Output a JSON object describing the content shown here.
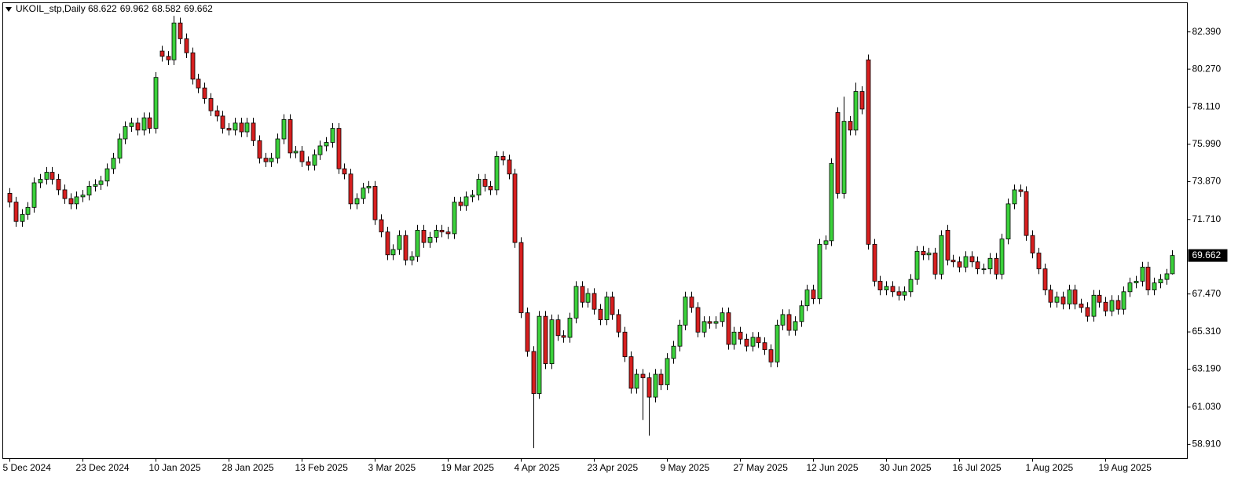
{
  "chart_data": {
    "type": "candlestick",
    "symbol": "UKOIL_stp,Daily",
    "ohlc": [
      68.622,
      69.962,
      68.582,
      69.662
    ],
    "last_price": 69.662,
    "up_color": "#3bd13b",
    "down_color": "#d71f1f",
    "ylim": [
      58.1,
      84.05
    ],
    "yticks": [
      {
        "value": 82.39,
        "label": "82.390"
      },
      {
        "value": 80.27,
        "label": "80.270"
      },
      {
        "value": 78.11,
        "label": "78.110"
      },
      {
        "value": 75.99,
        "label": "75.990"
      },
      {
        "value": 73.87,
        "label": "73.870"
      },
      {
        "value": 71.71,
        "label": "71.710"
      },
      {
        "value": 67.47,
        "label": "67.470"
      },
      {
        "value": 65.31,
        "label": "65.310"
      },
      {
        "value": 63.19,
        "label": "63.190"
      },
      {
        "value": 61.03,
        "label": "61.030"
      },
      {
        "value": 58.91,
        "label": "58.910"
      }
    ],
    "categories": [
      "5 Dec 2024",
      null,
      null,
      null,
      null,
      null,
      null,
      null,
      null,
      null,
      null,
      null,
      "23 Dec 2024",
      null,
      null,
      null,
      null,
      null,
      null,
      null,
      null,
      null,
      null,
      null,
      "10 Jan 2025",
      null,
      null,
      null,
      null,
      null,
      null,
      null,
      null,
      null,
      null,
      null,
      "28 Jan 2025",
      null,
      null,
      null,
      null,
      null,
      null,
      null,
      null,
      null,
      null,
      null,
      "13 Feb 2025",
      null,
      null,
      null,
      null,
      null,
      null,
      null,
      null,
      null,
      null,
      null,
      "3 Mar 2025",
      null,
      null,
      null,
      null,
      null,
      null,
      null,
      null,
      null,
      null,
      null,
      "19 Mar 2025",
      null,
      null,
      null,
      null,
      null,
      null,
      null,
      null,
      null,
      null,
      null,
      "4 Apr 2025",
      null,
      null,
      null,
      null,
      null,
      null,
      null,
      null,
      null,
      null,
      null,
      "23 Apr 2025",
      null,
      null,
      null,
      null,
      null,
      null,
      null,
      null,
      null,
      null,
      null,
      "9 May 2025",
      null,
      null,
      null,
      null,
      null,
      null,
      null,
      null,
      null,
      null,
      null,
      "27 May 2025",
      null,
      null,
      null,
      null,
      null,
      null,
      null,
      null,
      null,
      null,
      null,
      "12 Jun 2025",
      null,
      null,
      null,
      null,
      null,
      null,
      null,
      null,
      null,
      null,
      null,
      "30 Jun 2025",
      null,
      null,
      null,
      null,
      null,
      null,
      null,
      null,
      null,
      null,
      null,
      "16 Jul 2025",
      null,
      null,
      null,
      null,
      null,
      null,
      null,
      null,
      null,
      null,
      null,
      "1 Aug 2025",
      null,
      null,
      null,
      null,
      null,
      null,
      null,
      null,
      null,
      null,
      null,
      "19 Aug 2025",
      null,
      null,
      null,
      null,
      null,
      null,
      null,
      null,
      null,
      null,
      null
    ],
    "open": [
      73.2,
      72.7,
      71.6,
      72.0,
      72.4,
      73.8,
      74.0,
      74.4,
      74.0,
      73.4,
      72.9,
      72.6,
      73.0,
      73.1,
      73.6,
      73.7,
      73.9,
      74.6,
      75.2,
      76.3,
      77.0,
      77.2,
      76.8,
      77.5,
      76.9,
      81.3,
      81.0,
      80.8,
      82.9,
      82.0,
      81.2,
      79.7,
      79.2,
      78.6,
      77.9,
      77.6,
      76.9,
      76.8,
      77.2,
      76.7,
      77.2,
      76.2,
      75.2,
      75.0,
      75.2,
      76.3,
      77.4,
      75.5,
      75.6,
      75.0,
      74.8,
      75.4,
      75.9,
      76.1,
      76.9,
      74.6,
      74.3,
      72.6,
      72.9,
      73.5,
      73.6,
      71.7,
      71.0,
      69.7,
      70.0,
      70.8,
      69.4,
      69.6,
      71.1,
      70.4,
      70.7,
      71.1,
      71.0,
      70.9,
      72.7,
      72.5,
      73.0,
      73.1,
      74.0,
      73.6,
      73.4,
      75.3,
      75.1,
      74.3,
      70.4,
      66.4,
      64.2,
      61.8,
      66.2,
      63.5,
      66.0,
      65.1,
      65.0,
      66.1,
      67.9,
      67.0,
      67.5,
      66.6,
      66.0,
      67.3,
      66.3,
      65.3,
      63.9,
      62.1,
      62.9,
      62.7,
      61.6,
      62.9,
      62.3,
      63.8,
      64.5,
      65.7,
      67.3,
      66.7,
      65.3,
      65.9,
      65.8,
      65.9,
      66.4,
      64.6,
      65.3,
      64.9,
      64.5,
      65.0,
      64.7,
      64.3,
      63.6,
      65.7,
      66.3,
      65.4,
      65.9,
      66.8,
      67.7,
      67.2,
      70.3,
      70.5,
      77.8,
      73.2,
      77.3,
      76.8,
      79.0,
      80.8,
      70.3,
      68.2,
      67.7,
      67.9,
      67.6,
      67.4,
      67.6,
      68.3,
      69.9,
      69.7,
      69.8,
      68.6,
      71.1,
      69.4,
      69.3,
      69.0,
      69.6,
      69.3,
      68.9,
      68.9,
      69.5,
      68.6,
      70.6,
      72.6,
      73.4,
      73.3,
      70.8,
      69.8,
      68.9,
      67.7,
      67.0,
      67.3,
      66.9,
      67.7,
      66.9,
      66.7,
      66.2,
      67.4,
      67.0,
      66.5,
      67.1,
      66.6,
      67.6,
      68.1,
      68.2,
      69.0,
      67.7,
      68.1,
      68.3,
      68.622
    ],
    "high": [
      73.5,
      73.0,
      72.3,
      72.7,
      74.1,
      74.3,
      74.7,
      74.7,
      74.3,
      73.7,
      73.2,
      73.3,
      73.4,
      73.9,
      74.0,
      74.2,
      74.9,
      75.5,
      76.6,
      77.3,
      77.5,
      77.5,
      77.8,
      77.8,
      80.1,
      81.6,
      81.3,
      83.3,
      83.2,
      82.3,
      81.5,
      80.0,
      79.5,
      78.9,
      78.2,
      77.9,
      77.2,
      77.5,
      77.5,
      77.5,
      77.5,
      76.5,
      75.5,
      75.5,
      76.6,
      77.7,
      77.7,
      75.9,
      75.9,
      75.3,
      75.7,
      76.2,
      76.4,
      77.2,
      77.2,
      74.9,
      74.6,
      73.2,
      73.8,
      73.9,
      73.9,
      72.0,
      71.3,
      70.3,
      71.1,
      71.1,
      69.9,
      71.4,
      71.4,
      71.0,
      71.4,
      71.4,
      71.3,
      73.0,
      73.0,
      73.3,
      73.4,
      74.3,
      74.3,
      73.9,
      75.6,
      75.6,
      75.4,
      74.6,
      70.7,
      66.7,
      64.5,
      66.5,
      66.5,
      66.3,
      66.3,
      65.4,
      66.4,
      68.2,
      68.2,
      67.8,
      67.8,
      66.9,
      67.6,
      67.6,
      66.6,
      65.6,
      64.2,
      63.2,
      63.2,
      63.0,
      63.2,
      63.2,
      64.1,
      64.8,
      66.0,
      67.6,
      67.6,
      67.0,
      66.2,
      66.2,
      66.2,
      66.7,
      66.7,
      65.6,
      65.6,
      65.2,
      65.3,
      65.3,
      65.0,
      64.6,
      66.0,
      66.6,
      66.6,
      66.2,
      67.1,
      68.0,
      68.0,
      70.6,
      70.8,
      75.2,
      78.1,
      78.7,
      77.6,
      79.5,
      79.3,
      81.1,
      70.6,
      68.5,
      68.2,
      68.2,
      67.9,
      67.9,
      68.6,
      70.2,
      70.2,
      70.1,
      70.1,
      71.1,
      71.4,
      69.7,
      69.6,
      69.9,
      69.9,
      69.6,
      69.2,
      69.8,
      69.8,
      70.9,
      72.9,
      73.7,
      73.7,
      73.6,
      71.1,
      70.1,
      69.2,
      68.0,
      67.6,
      67.6,
      68.0,
      68.0,
      67.2,
      67.0,
      67.7,
      67.7,
      67.3,
      67.4,
      67.4,
      67.9,
      68.4,
      68.5,
      69.3,
      69.3,
      68.4,
      68.6,
      68.9,
      69.962
    ],
    "low": [
      72.4,
      71.3,
      71.3,
      71.7,
      72.1,
      73.5,
      73.7,
      73.7,
      73.1,
      72.6,
      72.3,
      72.3,
      72.7,
      72.8,
      73.3,
      73.4,
      73.6,
      74.3,
      74.9,
      76.0,
      76.7,
      76.5,
      76.5,
      76.6,
      76.6,
      80.7,
      80.5,
      80.5,
      81.7,
      80.9,
      79.4,
      78.9,
      78.3,
      77.6,
      77.3,
      76.6,
      76.5,
      76.5,
      76.4,
      76.4,
      75.9,
      74.9,
      74.7,
      74.7,
      74.9,
      76.0,
      75.2,
      75.2,
      74.7,
      74.5,
      74.5,
      75.1,
      75.6,
      75.8,
      74.3,
      74.0,
      72.3,
      72.3,
      72.6,
      73.2,
      71.4,
      70.7,
      69.4,
      69.4,
      69.7,
      69.1,
      69.1,
      69.3,
      70.1,
      70.1,
      70.4,
      70.7,
      70.6,
      70.6,
      72.2,
      72.2,
      72.7,
      72.8,
      73.3,
      73.1,
      73.1,
      74.8,
      74.0,
      70.1,
      66.1,
      63.9,
      58.7,
      61.5,
      63.2,
      63.2,
      64.8,
      64.7,
      64.7,
      65.8,
      66.7,
      66.7,
      66.3,
      65.7,
      65.7,
      66.0,
      65.0,
      63.6,
      61.8,
      61.8,
      60.3,
      59.4,
      61.3,
      62.0,
      62.0,
      63.5,
      64.2,
      65.4,
      66.4,
      65.0,
      65.0,
      65.5,
      65.5,
      65.6,
      64.3,
      64.3,
      64.6,
      64.2,
      64.2,
      64.4,
      64.0,
      63.3,
      63.3,
      65.4,
      65.1,
      65.1,
      65.6,
      66.5,
      66.9,
      66.9,
      70.0,
      70.2,
      72.9,
      72.9,
      76.5,
      76.5,
      77.7,
      70.0,
      67.9,
      67.4,
      67.4,
      67.3,
      67.1,
      67.1,
      67.3,
      68.0,
      69.4,
      69.4,
      68.3,
      68.3,
      69.1,
      69.0,
      68.7,
      68.7,
      69.0,
      68.6,
      68.6,
      68.6,
      68.3,
      68.3,
      70.3,
      72.3,
      73.0,
      70.5,
      69.5,
      68.6,
      67.4,
      66.7,
      66.7,
      66.6,
      66.6,
      66.6,
      66.4,
      65.9,
      65.9,
      66.7,
      66.2,
      66.2,
      66.3,
      66.3,
      67.3,
      67.8,
      67.9,
      67.4,
      67.4,
      67.8,
      68.0,
      68.582
    ],
    "close": [
      72.7,
      71.6,
      72.0,
      72.4,
      73.8,
      74.0,
      74.4,
      74.0,
      73.4,
      72.9,
      72.6,
      73.0,
      73.1,
      73.6,
      73.7,
      73.9,
      74.6,
      75.2,
      76.3,
      77.0,
      77.2,
      76.8,
      77.5,
      76.9,
      79.8,
      81.0,
      80.8,
      82.9,
      82.0,
      81.2,
      79.7,
      79.2,
      78.6,
      77.9,
      77.6,
      76.9,
      76.8,
      77.2,
      76.7,
      77.2,
      76.2,
      75.2,
      75.0,
      75.2,
      76.3,
      77.4,
      75.5,
      75.6,
      75.0,
      74.8,
      75.4,
      75.9,
      76.1,
      76.9,
      74.6,
      74.3,
      72.6,
      72.9,
      73.5,
      73.6,
      71.7,
      71.0,
      69.7,
      70.0,
      70.8,
      69.4,
      69.6,
      71.1,
      70.4,
      70.7,
      71.1,
      71.0,
      70.9,
      72.7,
      72.5,
      73.0,
      73.1,
      74.0,
      73.6,
      73.4,
      75.3,
      75.1,
      74.3,
      70.4,
      66.4,
      64.2,
      61.8,
      66.2,
      63.5,
      66.0,
      65.1,
      65.0,
      66.1,
      67.9,
      67.0,
      67.5,
      66.6,
      66.0,
      67.3,
      66.3,
      65.3,
      63.9,
      62.1,
      62.9,
      62.7,
      61.6,
      62.9,
      62.3,
      63.8,
      64.5,
      65.7,
      67.3,
      66.7,
      65.3,
      65.9,
      65.8,
      65.9,
      66.4,
      64.6,
      65.3,
      64.9,
      64.5,
      65.0,
      64.7,
      64.3,
      63.6,
      65.7,
      66.3,
      65.4,
      65.9,
      66.8,
      67.7,
      67.2,
      70.3,
      70.5,
      74.9,
      73.2,
      77.3,
      76.8,
      79.0,
      78.0,
      70.3,
      68.2,
      67.7,
      67.9,
      67.6,
      67.4,
      67.6,
      68.3,
      69.9,
      69.7,
      69.8,
      68.6,
      70.8,
      69.4,
      69.3,
      69.0,
      69.6,
      69.3,
      68.9,
      68.9,
      69.5,
      68.6,
      70.6,
      72.6,
      73.4,
      73.3,
      70.8,
      69.8,
      68.9,
      67.7,
      67.0,
      67.3,
      66.9,
      67.7,
      66.9,
      66.7,
      66.2,
      67.4,
      67.0,
      66.5,
      67.1,
      66.6,
      67.6,
      68.1,
      68.2,
      69.0,
      67.7,
      68.1,
      68.3,
      68.62,
      69.662
    ]
  }
}
